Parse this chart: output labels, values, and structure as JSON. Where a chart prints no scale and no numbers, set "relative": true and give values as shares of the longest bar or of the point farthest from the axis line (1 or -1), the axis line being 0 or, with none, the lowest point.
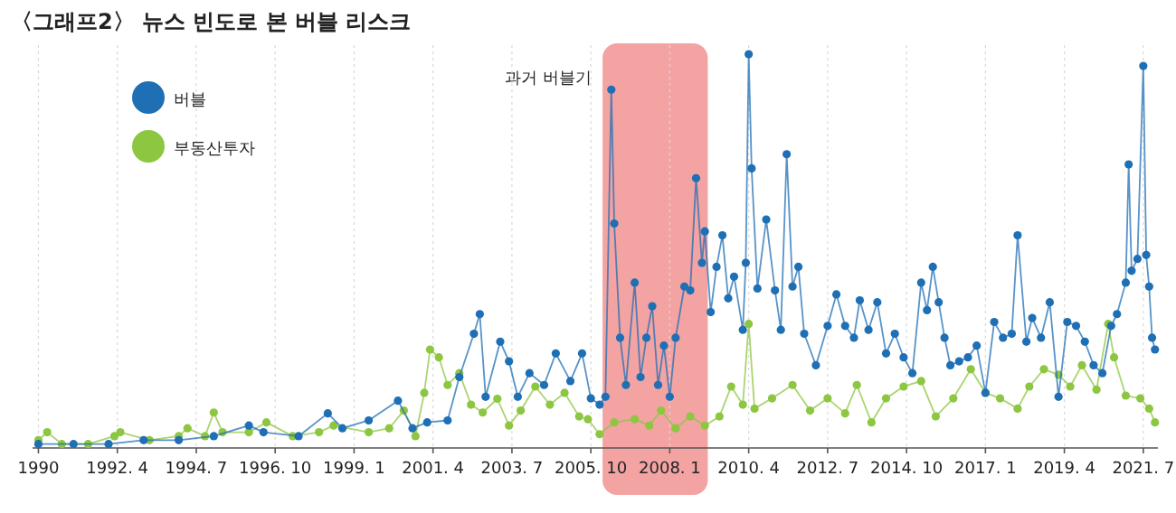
{
  "chart_data": {
    "type": "line",
    "title": "〈그래프2〉 뉴스 빈도로 본 버블 리스크",
    "relative": true,
    "marker": "circle",
    "grid": "x",
    "legend": "top left",
    "xlim": [
      "1989-11",
      "2021-12"
    ],
    "xticks": [
      {
        "value": "1990-01",
        "label": "1990"
      },
      {
        "value": "1992-04",
        "label": "1992. 4"
      },
      {
        "value": "1994-07",
        "label": "1994. 7"
      },
      {
        "value": "1996-10",
        "label": "1996. 10"
      },
      {
        "value": "1999-01",
        "label": "1999. 1"
      },
      {
        "value": "2001-04",
        "label": "2001. 4"
      },
      {
        "value": "2003-07",
        "label": "2003. 7"
      },
      {
        "value": "2005-10",
        "label": "2005. 10"
      },
      {
        "value": "2008-01",
        "label": "2008. 1"
      },
      {
        "value": "2010-04",
        "label": "2010. 4"
      },
      {
        "value": "2012-07",
        "label": "2012. 7"
      },
      {
        "value": "2014-10",
        "label": "2014. 10"
      },
      {
        "value": "2017-01",
        "label": "2017. 1"
      },
      {
        "value": "2019-04",
        "label": "2019. 4"
      },
      {
        "value": "2021-07",
        "label": "2021. 7"
      }
    ],
    "bands": [
      {
        "axis": "x",
        "from": "2006-02",
        "to": "2009-02",
        "label": "과거 버블기",
        "color": "#f4a3a3"
      }
    ],
    "series": [
      {
        "name": "부동산투자",
        "color": "#8dc641",
        "x": [
          "1990-01",
          "1990-04",
          "1990-09",
          "1991-06",
          "1992-03",
          "1992-05",
          "1993-03",
          "1994-01",
          "1994-04",
          "1994-10",
          "1995-01",
          "1995-04",
          "1996-01",
          "1996-07",
          "1997-04",
          "1998-01",
          "1998-06",
          "1999-06",
          "2000-01",
          "2000-06",
          "2000-10",
          "2001-01",
          "2001-03",
          "2001-06",
          "2001-09",
          "2002-01",
          "2002-05",
          "2002-09",
          "2003-02",
          "2003-06",
          "2003-10",
          "2004-03",
          "2004-08",
          "2005-01",
          "2005-06",
          "2005-09",
          "2006-01",
          "2006-06",
          "2007-01",
          "2007-06",
          "2007-10",
          "2008-03",
          "2008-08",
          "2009-01",
          "2009-06",
          "2009-10",
          "2010-02",
          "2010-04",
          "2010-06",
          "2010-12",
          "2011-07",
          "2012-01",
          "2012-07",
          "2013-01",
          "2013-05",
          "2013-10",
          "2014-03",
          "2014-09",
          "2015-03",
          "2015-08",
          "2016-02",
          "2016-08",
          "2017-01",
          "2017-06",
          "2017-12",
          "2018-04",
          "2018-09",
          "2019-02",
          "2019-06",
          "2019-10",
          "2020-03",
          "2020-07",
          "2020-09",
          "2021-01",
          "2021-06",
          "2021-09",
          "2021-11"
        ],
        "values": [
          0.02,
          0.04,
          0.01,
          0.01,
          0.03,
          0.04,
          0.02,
          0.03,
          0.05,
          0.03,
          0.09,
          0.04,
          0.04,
          0.065,
          0.03,
          0.04,
          0.057,
          0.04,
          0.05,
          0.095,
          0.03,
          0.14,
          0.25,
          0.23,
          0.16,
          0.19,
          0.11,
          0.09,
          0.125,
          0.057,
          0.095,
          0.156,
          0.11,
          0.14,
          0.08,
          0.073,
          0.035,
          0.065,
          0.073,
          0.057,
          0.095,
          0.05,
          0.08,
          0.057,
          0.08,
          0.156,
          0.11,
          0.315,
          0.1,
          0.126,
          0.16,
          0.095,
          0.126,
          0.088,
          0.16,
          0.065,
          0.126,
          0.156,
          0.17,
          0.08,
          0.126,
          0.2,
          0.14,
          0.126,
          0.1,
          0.156,
          0.2,
          0.186,
          0.156,
          0.21,
          0.148,
          0.315,
          0.23,
          0.133,
          0.126,
          0.1,
          0.065
        ]
      },
      {
        "name": "버블",
        "color": "#1f6fb5",
        "x": [
          "1990-01",
          "1991-01",
          "1992-01",
          "1993-01",
          "1994-01",
          "1995-01",
          "1996-01",
          "1996-06",
          "1997-06",
          "1998-04",
          "1998-09",
          "1999-06",
          "2000-04",
          "2000-09",
          "2001-02",
          "2001-09",
          "2002-01",
          "2002-06",
          "2002-08",
          "2002-10",
          "2003-03",
          "2003-06",
          "2003-09",
          "2004-01",
          "2004-06",
          "2004-10",
          "2005-03",
          "2005-07",
          "2005-10",
          "2006-01",
          "2006-03",
          "2006-05",
          "2006-06",
          "2006-08",
          "2006-10",
          "2007-01",
          "2007-03",
          "2007-05",
          "2007-07",
          "2007-09",
          "2007-11",
          "2008-01",
          "2008-03",
          "2008-06",
          "2008-08",
          "2008-10",
          "2008-12",
          "2009-01",
          "2009-03",
          "2009-05",
          "2009-07",
          "2009-09",
          "2009-11",
          "2010-02",
          "2010-03",
          "2010-04",
          "2010-05",
          "2010-07",
          "2010-10",
          "2011-01",
          "2011-03",
          "2011-05",
          "2011-07",
          "2011-09",
          "2011-11",
          "2012-03",
          "2012-07",
          "2012-10",
          "2013-01",
          "2013-04",
          "2013-06",
          "2013-09",
          "2013-12",
          "2014-03",
          "2014-06",
          "2014-09",
          "2014-12",
          "2015-03",
          "2015-05",
          "2015-07",
          "2015-09",
          "2015-11",
          "2016-01",
          "2016-04",
          "2016-07",
          "2016-10",
          "2017-01",
          "2017-04",
          "2017-07",
          "2017-10",
          "2017-12",
          "2018-03",
          "2018-05",
          "2018-08",
          "2018-11",
          "2019-02",
          "2019-05",
          "2019-08",
          "2019-11",
          "2020-02",
          "2020-05",
          "2020-08",
          "2020-10",
          "2021-01",
          "2021-02",
          "2021-03",
          "2021-05",
          "2021-07",
          "2021-08",
          "2021-09",
          "2021-10",
          "2021-11"
        ],
        "values": [
          0.01,
          0.01,
          0.01,
          0.02,
          0.02,
          0.03,
          0.057,
          0.04,
          0.03,
          0.088,
          0.05,
          0.07,
          0.12,
          0.05,
          0.065,
          0.07,
          0.18,
          0.29,
          0.34,
          0.13,
          0.27,
          0.22,
          0.13,
          0.19,
          0.16,
          0.24,
          0.17,
          0.24,
          0.126,
          0.11,
          0.13,
          0.91,
          0.57,
          0.28,
          0.16,
          0.42,
          0.18,
          0.28,
          0.36,
          0.16,
          0.26,
          0.13,
          0.28,
          0.41,
          0.4,
          0.685,
          0.47,
          0.55,
          0.345,
          0.46,
          0.54,
          0.38,
          0.435,
          0.3,
          0.47,
          1,
          0.71,
          0.405,
          0.58,
          0.4,
          0.3,
          0.746,
          0.41,
          0.46,
          0.29,
          0.21,
          0.31,
          0.39,
          0.31,
          0.28,
          0.375,
          0.3,
          0.37,
          0.24,
          0.29,
          0.23,
          0.19,
          0.42,
          0.35,
          0.46,
          0.37,
          0.28,
          0.21,
          0.22,
          0.23,
          0.26,
          0.14,
          0.32,
          0.28,
          0.29,
          0.54,
          0.27,
          0.33,
          0.28,
          0.37,
          0.13,
          0.32,
          0.31,
          0.27,
          0.21,
          0.19,
          0.31,
          0.34,
          0.42,
          0.72,
          0.45,
          0.48,
          0.97,
          0.49,
          0.41,
          0.28,
          0.25
        ]
      }
    ]
  }
}
